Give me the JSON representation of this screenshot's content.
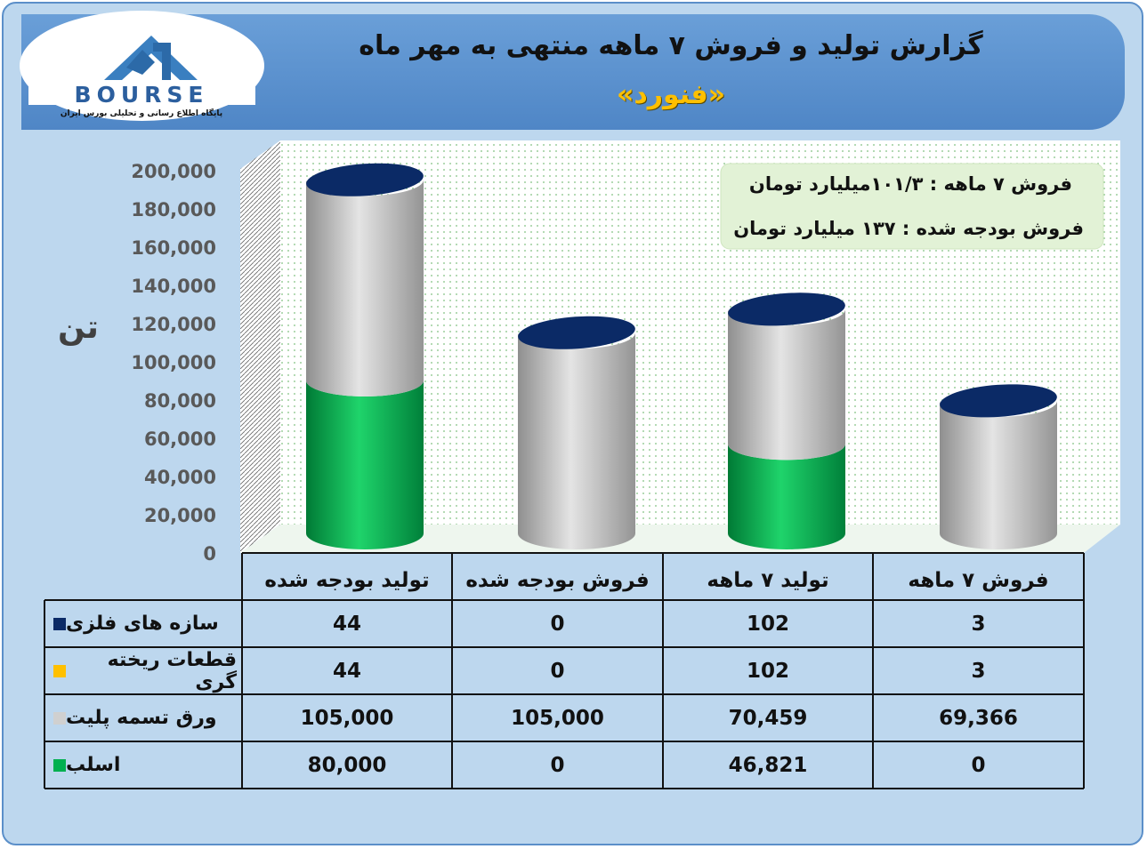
{
  "title": "گزارش تولید و فروش ۷ ماهه منتهی به مهر ماه",
  "subtitle": "«فنورد»",
  "logo": {
    "text": "BOURSE",
    "tagline": "پایگاه اطلاع رسانی و تحلیلی بورس ایران"
  },
  "info_box": {
    "line1": "فروش ۷ ماهه : ۱۰۱/۳میلیارد تومان",
    "line2": "فروش بودجه شده : ۱۳۷ میلیارد تومان"
  },
  "ylabel": "تن",
  "colors": {
    "slab": "#00b050",
    "plate": "#d0d0d0",
    "casting": "#ffc000",
    "metal": "#0b2a66"
  },
  "chart_data": {
    "type": "bar",
    "stacked": true,
    "ylabel": "تن",
    "ylim": [
      0,
      200000
    ],
    "yticks": [
      "0",
      "20,000",
      "40,000",
      "60,000",
      "80,000",
      "100,000",
      "120,000",
      "140,000",
      "160,000",
      "180,000",
      "200,000"
    ],
    "categories": [
      "تولید بودجه شده",
      "فروش بودجه شده",
      "تولید ۷ ماهه",
      "فروش ۷ ماهه"
    ],
    "series": [
      {
        "name": "اسلب",
        "values": [
          80000,
          0,
          46821,
          0
        ],
        "labels": [
          "80,000",
          "0",
          "46,821",
          "0"
        ],
        "color": "#00b050"
      },
      {
        "name": "ورق تسمه پلیت",
        "values": [
          105000,
          105000,
          70459,
          69366
        ],
        "labels": [
          "105,000",
          "105,000",
          "70,459",
          "69,366"
        ],
        "color": "#d0d0d0"
      },
      {
        "name": "قطعات ریخته گری",
        "values": [
          44,
          0,
          102,
          3
        ],
        "labels": [
          "44",
          "0",
          "102",
          "3"
        ],
        "color": "#ffc000"
      },
      {
        "name": "سازه های فلزی",
        "values": [
          44,
          0,
          102,
          3
        ],
        "labels": [
          "44",
          "0",
          "102",
          "3"
        ],
        "color": "#0b2a66"
      }
    ]
  }
}
